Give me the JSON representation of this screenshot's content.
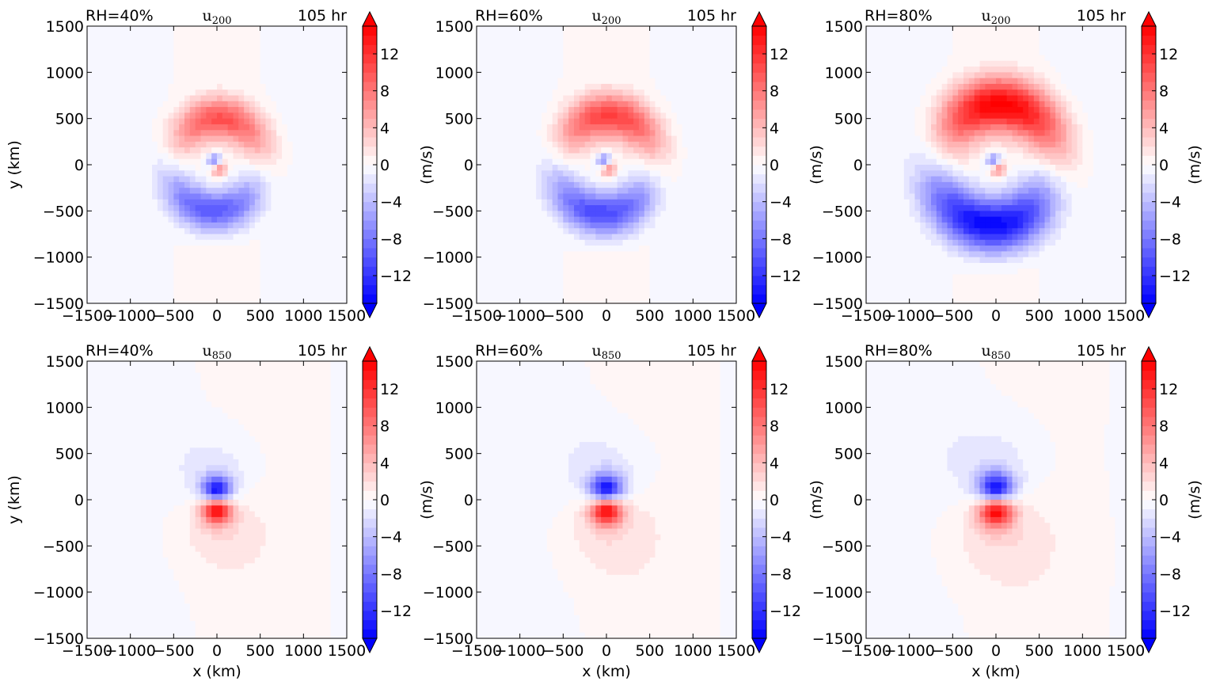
{
  "figure": {
    "colormap": {
      "low": "#0000ff",
      "mid": "#ffffff",
      "high": "#ff0000"
    },
    "colorbar": {
      "ticks": [
        -12,
        -8,
        -4,
        0,
        4,
        8,
        12
      ],
      "range": [
        -15,
        15
      ],
      "levels": 30,
      "extend": "both",
      "label": "(m/s)"
    }
  },
  "chart_data": [
    {
      "type": "heatmap",
      "title_left": "RH=40%",
      "variable": "u",
      "level": "200",
      "title_right": "105 hr",
      "xlabel": "",
      "ylabel": "y (km)",
      "xlim": [
        -1500,
        1500
      ],
      "ylim": [
        -1500,
        1500
      ],
      "xticks": [
        -1500,
        -1000,
        -500,
        0,
        500,
        1000,
        1500
      ],
      "yticks": [
        -1500,
        -1000,
        -500,
        0,
        500,
        1000,
        1500
      ],
      "field": {
        "regime": "upper",
        "core_amplitude": 15,
        "band_amplitude": 10,
        "band_radius_km": 500,
        "outer_extent_km": 750
      }
    },
    {
      "type": "heatmap",
      "title_left": "RH=60%",
      "variable": "u",
      "level": "200",
      "title_right": "105 hr",
      "xlabel": "",
      "ylabel": "",
      "xlim": [
        -1500,
        1500
      ],
      "ylim": [
        -1500,
        1500
      ],
      "xticks": [
        -1500,
        -1000,
        -500,
        0,
        500,
        1000,
        1500
      ],
      "yticks": [
        -1500,
        -1000,
        -500,
        0,
        500,
        1000,
        1500
      ],
      "field": {
        "regime": "upper",
        "core_amplitude": 15,
        "band_amplitude": 11,
        "band_radius_km": 530,
        "outer_extent_km": 800
      }
    },
    {
      "type": "heatmap",
      "title_left": "RH=80%",
      "variable": "u",
      "level": "200",
      "title_right": "105 hr",
      "xlabel": "",
      "ylabel": "",
      "xlim": [
        -1500,
        1500
      ],
      "ylim": [
        -1500,
        1500
      ],
      "xticks": [
        -1500,
        -1000,
        -500,
        0,
        500,
        1000,
        1500
      ],
      "yticks": [
        -1500,
        -1000,
        -500,
        0,
        500,
        1000,
        1500
      ],
      "field": {
        "regime": "upper",
        "core_amplitude": 15,
        "band_amplitude": 15,
        "band_radius_km": 650,
        "outer_extent_km": 1000
      }
    },
    {
      "type": "heatmap",
      "title_left": "RH=40%",
      "variable": "u",
      "level": "850",
      "title_right": "105 hr",
      "xlabel": "x (km)",
      "ylabel": "y (km)",
      "xlim": [
        -1500,
        1500
      ],
      "ylim": [
        -1500,
        1500
      ],
      "xticks": [
        -1500,
        -1000,
        -500,
        0,
        500,
        1000,
        1500
      ],
      "yticks": [
        -1500,
        -1000,
        -500,
        0,
        500,
        1000,
        1500
      ],
      "field": {
        "regime": "lower",
        "core_amplitude": 15,
        "core_radius_km": 120,
        "outer_extent_km": 650
      }
    },
    {
      "type": "heatmap",
      "title_left": "RH=60%",
      "variable": "u",
      "level": "850",
      "title_right": "105 hr",
      "xlabel": "x (km)",
      "ylabel": "",
      "xlim": [
        -1500,
        1500
      ],
      "ylim": [
        -1500,
        1500
      ],
      "xticks": [
        -1500,
        -1000,
        -500,
        0,
        500,
        1000,
        1500
      ],
      "yticks": [
        -1500,
        -1000,
        -500,
        0,
        500,
        1000,
        1500
      ],
      "field": {
        "regime": "lower",
        "core_amplitude": 15,
        "core_radius_km": 130,
        "outer_extent_km": 700
      }
    },
    {
      "type": "heatmap",
      "title_left": "RH=80%",
      "variable": "u",
      "level": "850",
      "title_right": "105 hr",
      "xlabel": "x (km)",
      "ylabel": "",
      "xlim": [
        -1500,
        1500
      ],
      "ylim": [
        -1500,
        1500
      ],
      "xticks": [
        -1500,
        -1000,
        -500,
        0,
        500,
        1000,
        1500
      ],
      "yticks": [
        -1500,
        -1000,
        -500,
        0,
        500,
        1000,
        1500
      ],
      "field": {
        "regime": "lower",
        "core_amplitude": 15,
        "core_radius_km": 140,
        "outer_extent_km": 800
      }
    }
  ]
}
